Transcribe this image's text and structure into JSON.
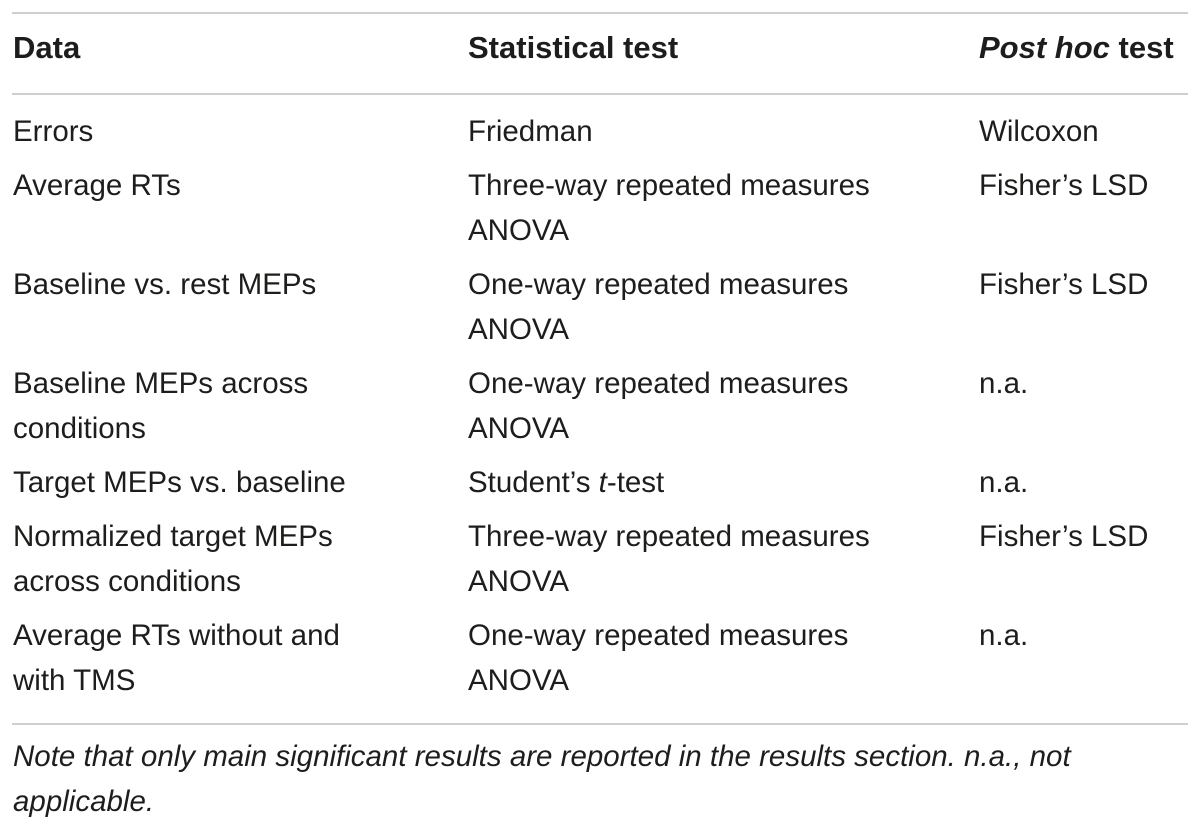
{
  "table": {
    "headers": {
      "data": "Data",
      "test": "Statistical test",
      "posthoc_italic": "Post hoc",
      "posthoc_rest": " test"
    },
    "rows": [
      {
        "data": "Errors",
        "test": "Friedman",
        "posthoc": "Wilcoxon"
      },
      {
        "data": "Average RTs",
        "test": "Three-way repeated measures\nANOVA",
        "posthoc": "Fisher’s LSD"
      },
      {
        "data": "Baseline vs. rest MEPs",
        "test": "One-way repeated measures\nANOVA",
        "posthoc": "Fisher’s LSD"
      },
      {
        "data": "Baseline MEPs across\nconditions",
        "test": "One-way repeated measures\nANOVA",
        "posthoc": "n.a."
      },
      {
        "data": "Target MEPs vs. baseline",
        "test_prefix": "Student’s ",
        "test_italic": "t",
        "test_suffix": "-test",
        "posthoc": "n.a."
      },
      {
        "data": "Normalized target MEPs\nacross conditions",
        "test": "Three-way repeated measures\nANOVA",
        "posthoc": "Fisher’s LSD"
      },
      {
        "data": "Average RTs without and\nwith TMS",
        "test": "One-way repeated measures\nANOVA",
        "posthoc": "n.a."
      }
    ],
    "note": "Note that only main significant results are reported in the results section. n.a., not applicable."
  }
}
